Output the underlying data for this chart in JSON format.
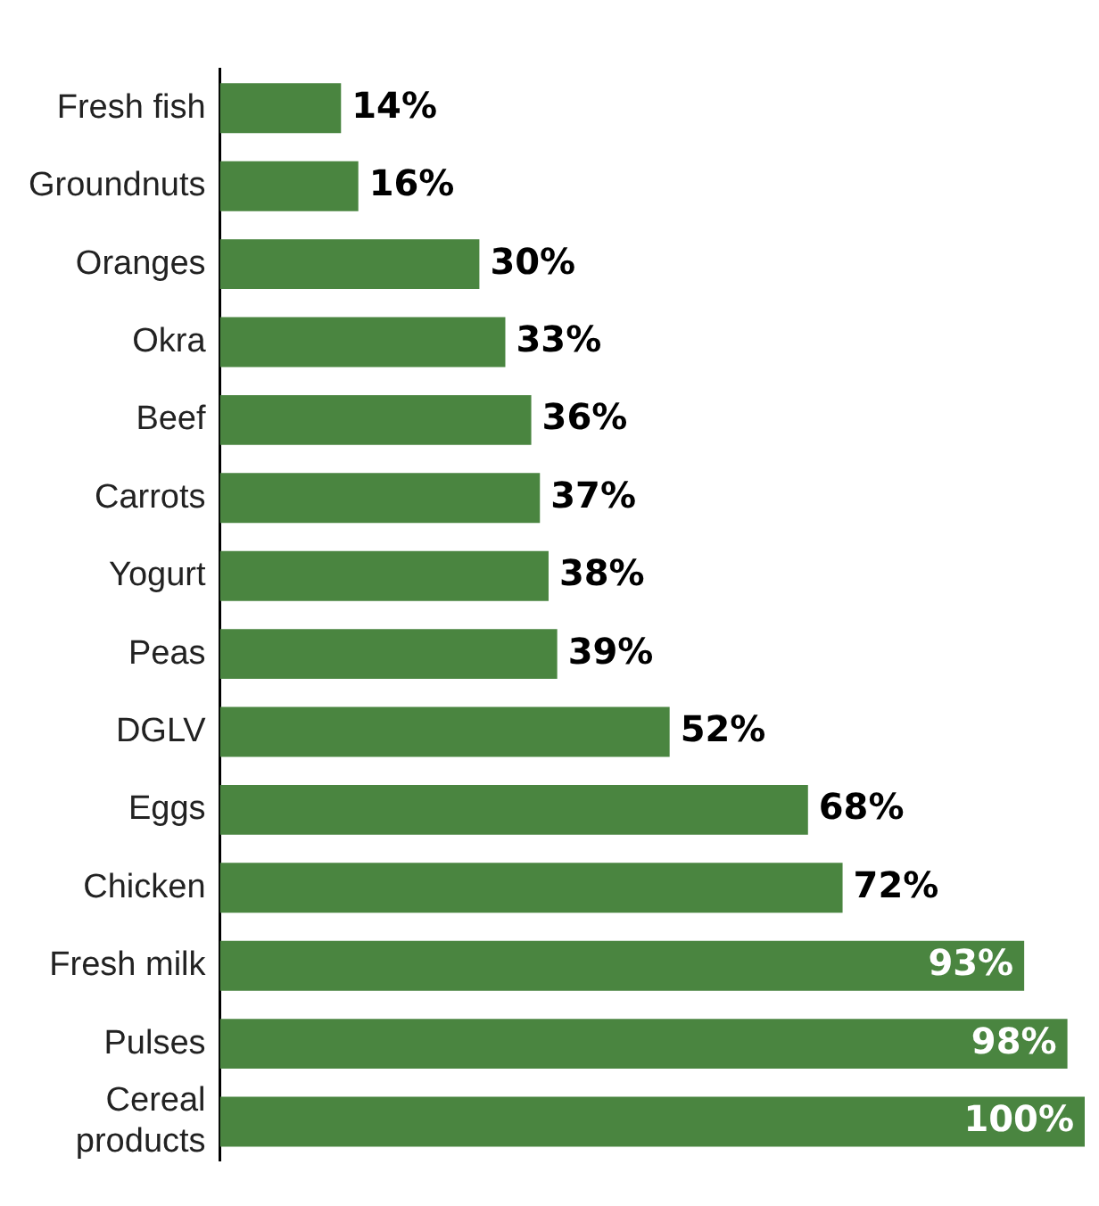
{
  "chart_data": {
    "type": "bar",
    "orientation": "horizontal",
    "categories": [
      "Fresh fish",
      "Groundnuts",
      "Oranges",
      "Okra",
      "Beef",
      "Carrots",
      "Yogurt",
      "Peas",
      "DGLV",
      "Eggs",
      "Chicken",
      "Fresh milk",
      "Pulses",
      "Cereal products"
    ],
    "values": [
      14,
      16,
      30,
      33,
      36,
      37,
      38,
      39,
      52,
      68,
      72,
      93,
      98,
      100
    ],
    "value_labels": [
      "14%",
      "16%",
      "30%",
      "33%",
      "36%",
      "37%",
      "38%",
      "39%",
      "52%",
      "68%",
      "72%",
      "93%",
      "98%",
      "100%"
    ],
    "color": "#4a8540",
    "grid": false,
    "legend": false
  }
}
